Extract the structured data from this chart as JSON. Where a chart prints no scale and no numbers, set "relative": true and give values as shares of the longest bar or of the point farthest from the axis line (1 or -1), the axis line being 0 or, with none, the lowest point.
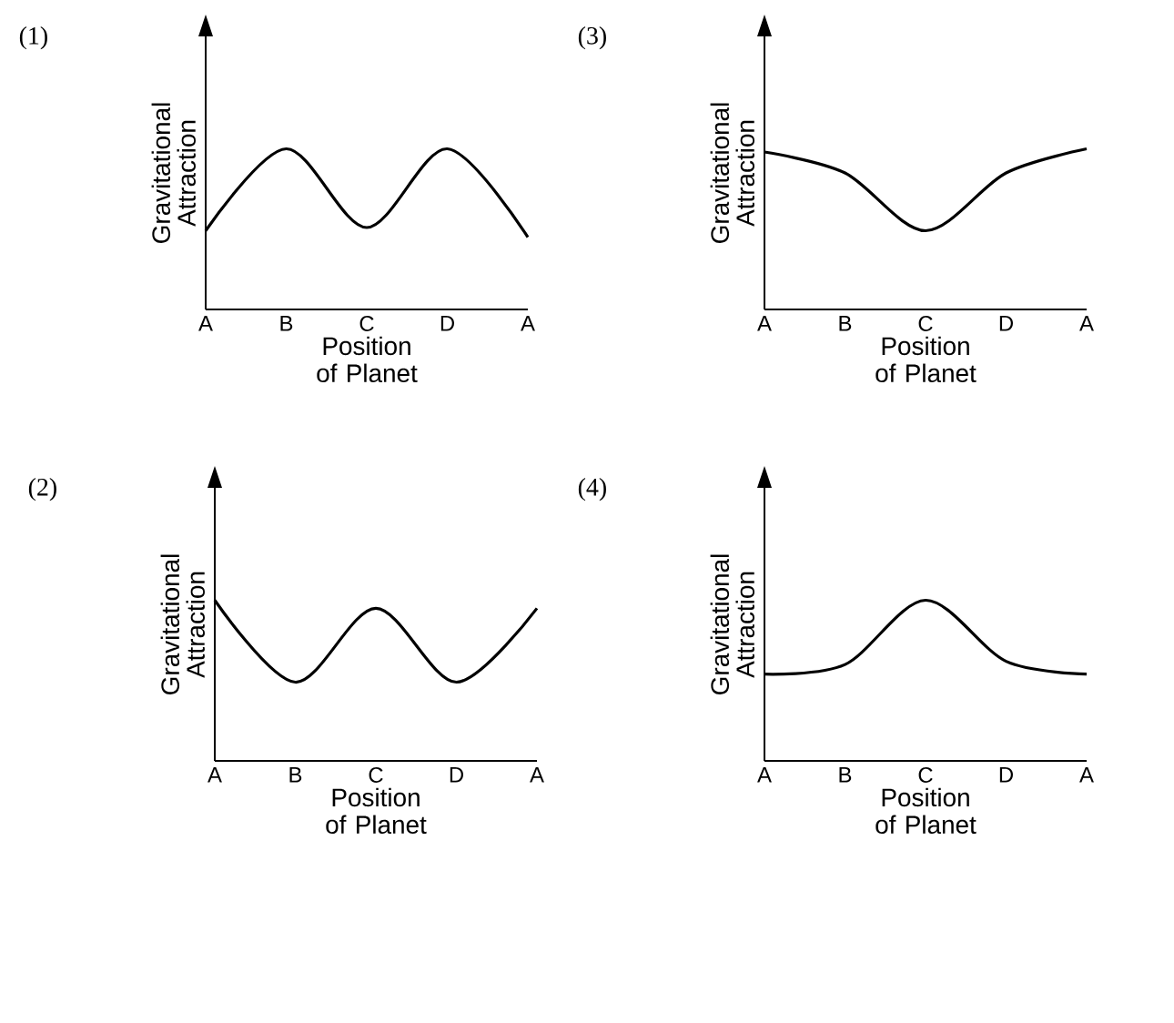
{
  "chart_data": [
    {
      "type": "line",
      "title": "(1)",
      "xlabel": "Position of Planet",
      "ylabel": "Gravitational Attraction",
      "categories": [
        "A",
        "B",
        "C",
        "D",
        "A"
      ],
      "values": [
        0.49,
        1,
        0.51,
        1,
        0.45
      ],
      "color": "#000000",
      "relative": true,
      "line_style": "solid"
    },
    {
      "type": "line",
      "title": "(3)",
      "xlabel": "Position of Planet",
      "ylabel": "Gravitational Attraction",
      "categories": [
        "A",
        "B",
        "C",
        "D",
        "A"
      ],
      "values": [
        0.98,
        0.85,
        0.49,
        0.85,
        1
      ],
      "color": "#000000",
      "relative": true,
      "line_style": "solid"
    },
    {
      "type": "line",
      "title": "(2)",
      "xlabel": "Position of Planet",
      "ylabel": "Gravitational Attraction",
      "categories": [
        "A",
        "B",
        "C",
        "D",
        "A"
      ],
      "values": [
        1,
        0.49,
        0.95,
        0.49,
        0.95
      ],
      "color": "#000000",
      "relative": true,
      "line_style": "solid"
    },
    {
      "type": "line",
      "title": "(4)",
      "xlabel": "Position of Planet",
      "ylabel": "Gravitational Attraction",
      "categories": [
        "A",
        "B",
        "C",
        "D",
        "A"
      ],
      "values": [
        0.54,
        0.6,
        1,
        0.62,
        0.54
      ],
      "color": "#000000",
      "relative": true,
      "line_style": "solid"
    }
  ]
}
